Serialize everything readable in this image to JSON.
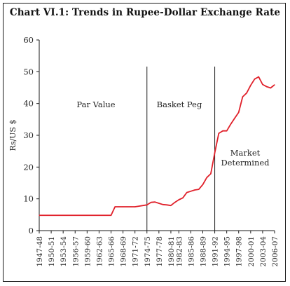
{
  "chart_data": {
    "type": "line",
    "title": "Chart VI.1: Trends in Rupee-Dollar Exchange Rate",
    "ylabel": "Rs/US $",
    "xlabel": "",
    "ylim": [
      0,
      60
    ],
    "yticks": [
      0,
      10,
      20,
      30,
      40,
      50,
      60
    ],
    "xtick_labels": [
      "1947-48",
      "1950-51",
      "1953-54",
      "1956-57",
      "1959-60",
      "1962-63",
      "1965-66",
      "1968-69",
      "1971-72",
      "1974-75",
      "1977-78",
      "1980-81",
      "1982-83",
      "1985-86",
      "1988-89",
      "1991-92",
      "1994-95",
      "1997-98",
      "2000-01",
      "2003-04",
      "2006-07"
    ],
    "series": [
      {
        "color": "#e0202a",
        "x": [
          "1947-48",
          "1948-49",
          "1949-50",
          "1950-51",
          "1951-52",
          "1952-53",
          "1953-54",
          "1954-55",
          "1955-56",
          "1956-57",
          "1957-58",
          "1958-59",
          "1959-60",
          "1960-61",
          "1961-62",
          "1962-63",
          "1963-64",
          "1964-65",
          "1965-66",
          "1966-67",
          "1967-68",
          "1968-69",
          "1969-70",
          "1970-71",
          "1971-72",
          "1972-73",
          "1973-74",
          "1974-75",
          "1975-76",
          "1976-77",
          "1977-78",
          "1978-79",
          "1979-80",
          "1980-81",
          "1981-82",
          "1982-83",
          "1983-84",
          "1984-85",
          "1985-86",
          "1986-87",
          "1987-88",
          "1988-89",
          "1989-90",
          "1990-91",
          "1991-92",
          "1992-93",
          "1993-94",
          "1994-95",
          "1995-96",
          "1996-97",
          "1997-98",
          "1998-99",
          "1999-00",
          "2000-01",
          "2001-02",
          "2002-03",
          "2003-04",
          "2004-05",
          "2005-06",
          "2006-07"
        ],
        "values": [
          4.8,
          4.8,
          4.8,
          4.8,
          4.8,
          4.8,
          4.8,
          4.8,
          4.8,
          4.8,
          4.8,
          4.8,
          4.8,
          4.8,
          4.8,
          4.8,
          4.8,
          4.8,
          4.8,
          7.5,
          7.5,
          7.5,
          7.5,
          7.5,
          7.5,
          7.7,
          7.9,
          8.1,
          8.9,
          9.0,
          8.6,
          8.2,
          8.1,
          7.9,
          8.9,
          9.7,
          10.3,
          12.0,
          12.4,
          12.8,
          13.0,
          14.5,
          16.7,
          17.9,
          24.5,
          30.6,
          31.4,
          31.4,
          33.5,
          35.4,
          37.2,
          42.1,
          43.3,
          45.7,
          47.7,
          48.4,
          46.0,
          45.3,
          44.9,
          45.9
        ]
      }
    ],
    "vlines": [
      {
        "at": "1974-75"
      },
      {
        "at": "1991-92"
      }
    ],
    "annotations": [
      {
        "text": "Par Value"
      },
      {
        "text": "Basket Peg"
      },
      {
        "text": "Market"
      },
      {
        "text": "Determined"
      }
    ]
  }
}
